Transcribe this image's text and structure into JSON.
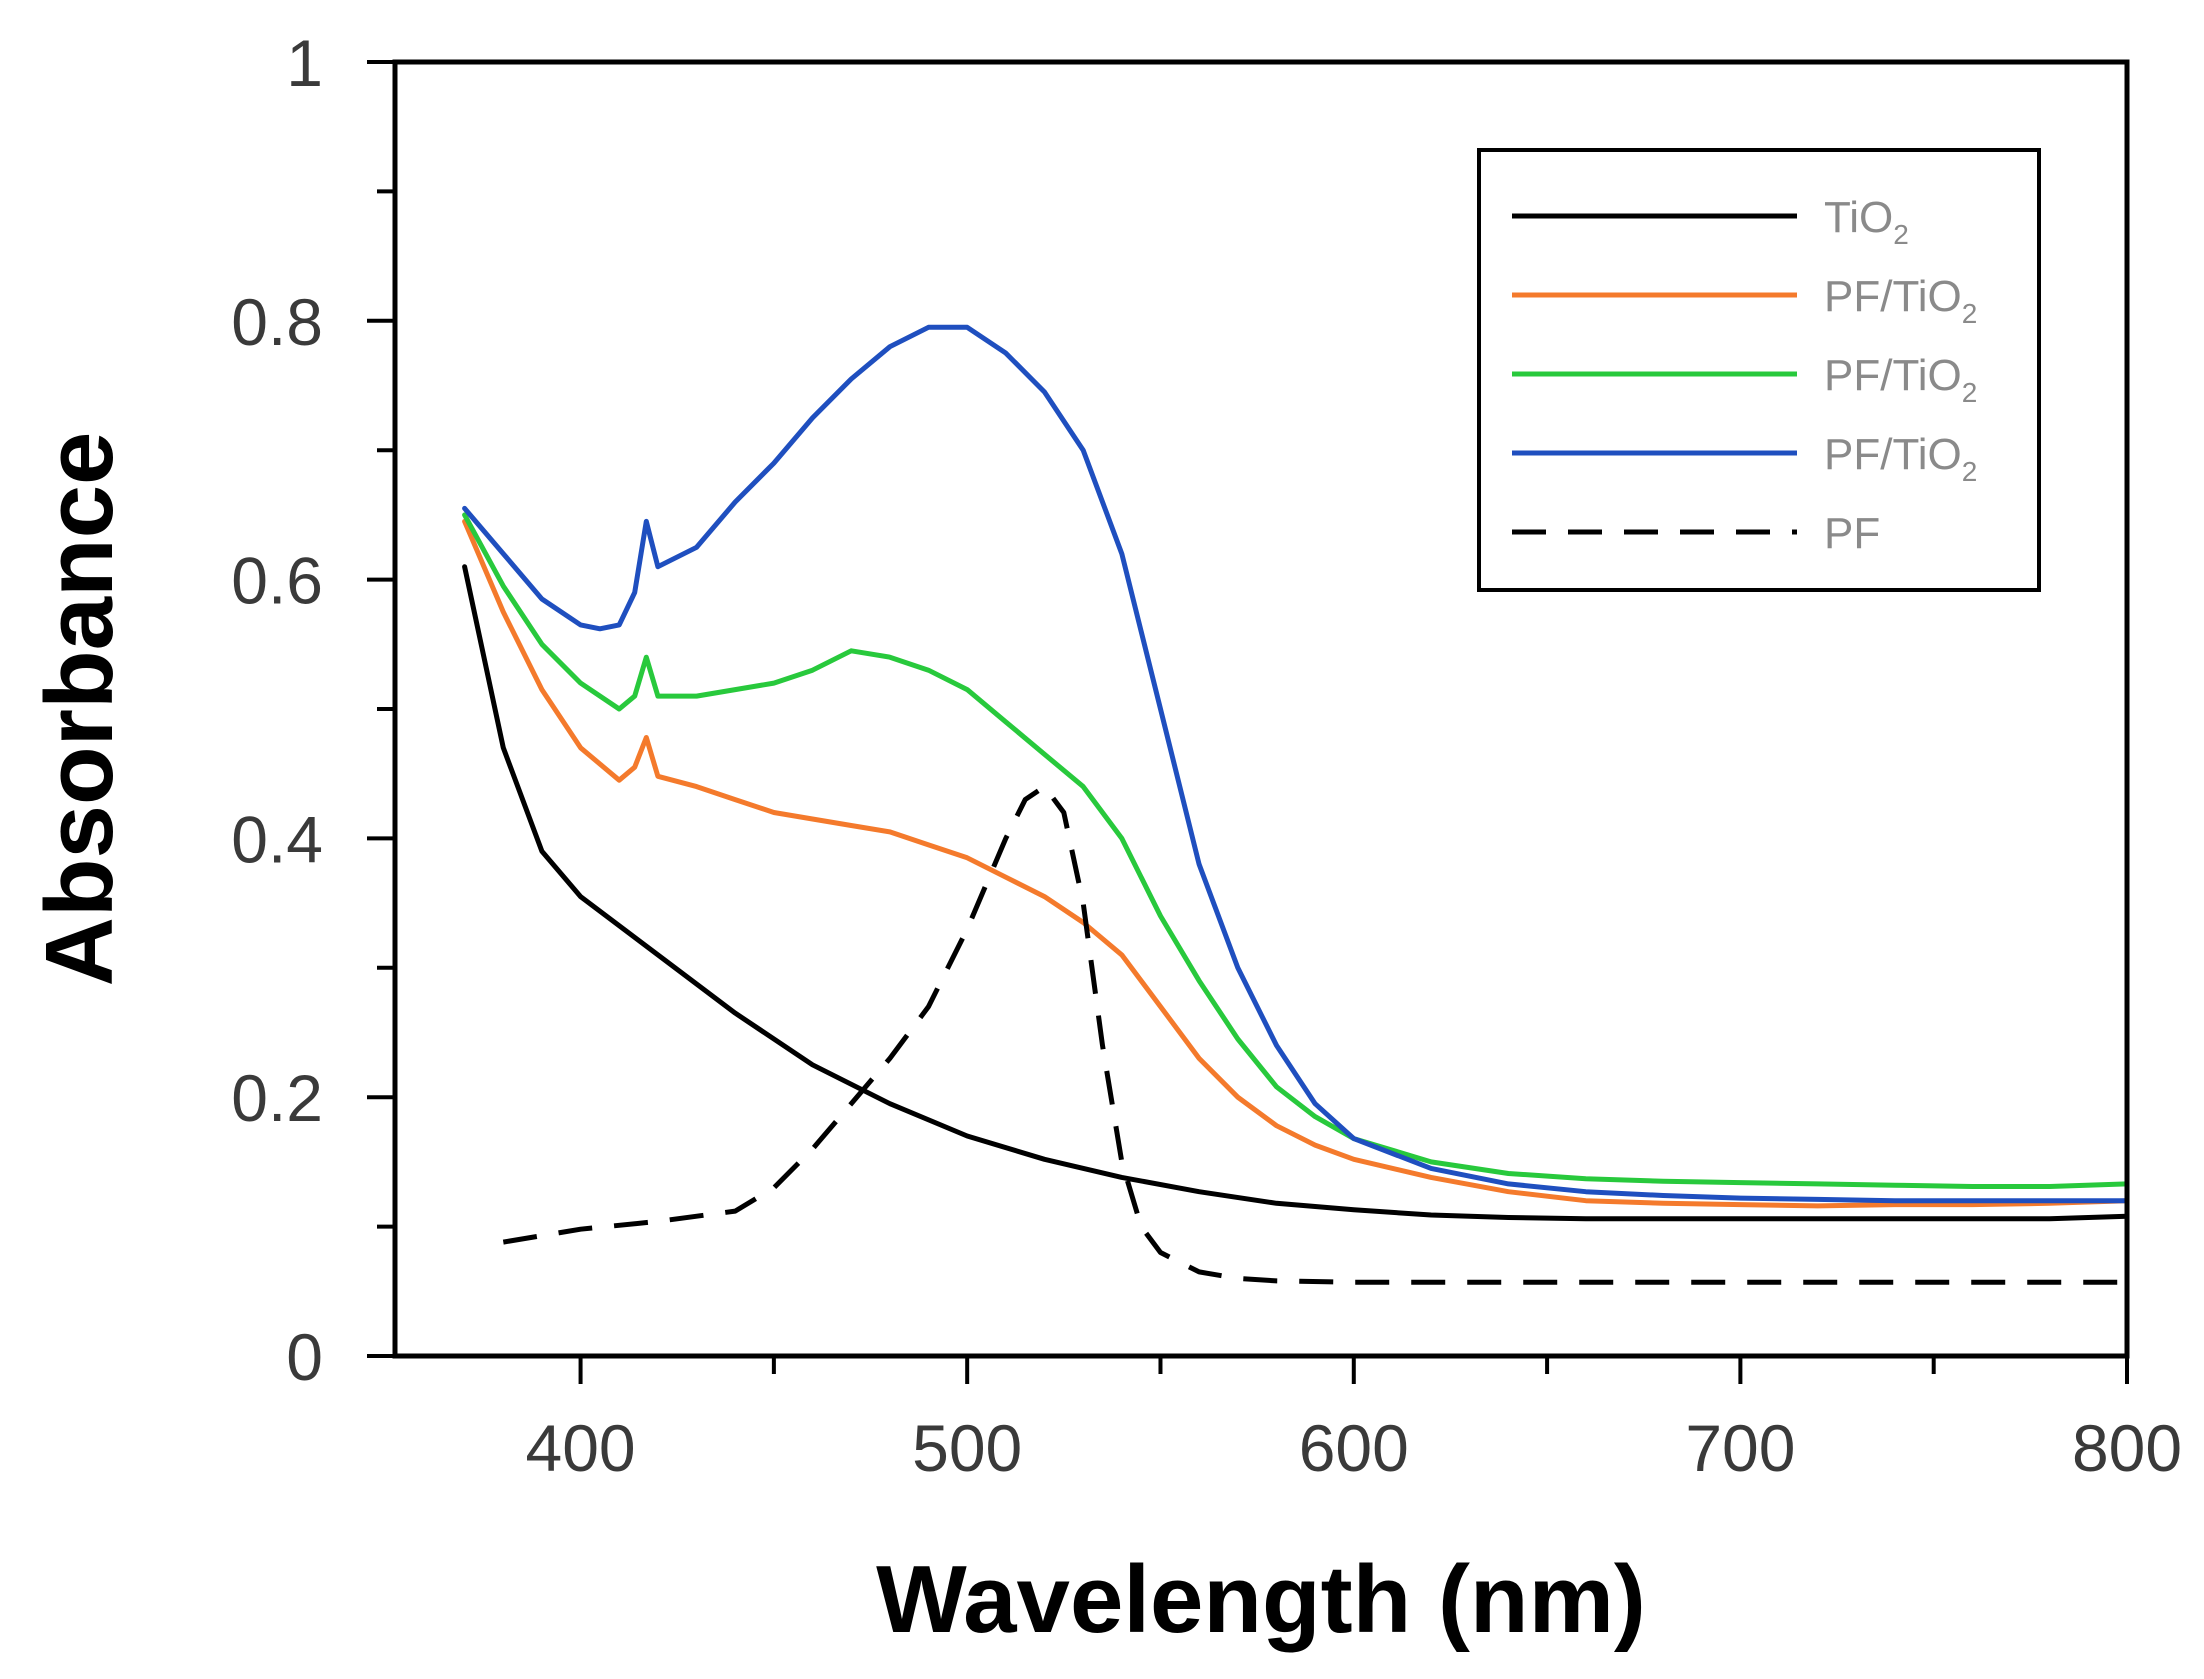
{
  "chart_data": {
    "type": "line",
    "title": "",
    "xlabel": "Wavelength (nm)",
    "ylabel": "Absorbance",
    "xlim": [
      352,
      800
    ],
    "ylim": [
      0,
      1
    ],
    "x_ticks": [
      400,
      500,
      600,
      700,
      800
    ],
    "x_tick_labels": [
      "400",
      "500",
      "600",
      "700",
      "800"
    ],
    "y_ticks": [
      0,
      0.2,
      0.4,
      0.6,
      0.8,
      1
    ],
    "y_tick_labels": [
      "0",
      "0.2",
      "0.4",
      "0.6",
      "0.8",
      "1"
    ],
    "legend_position": "top-right",
    "series": [
      {
        "name": "TiO2",
        "label_main": "TiO",
        "label_sub": "2",
        "color": "#000000",
        "dash": "solid",
        "x": [
          370,
          380,
          390,
          400,
          420,
          440,
          460,
          480,
          500,
          520,
          540,
          560,
          580,
          600,
          620,
          640,
          660,
          680,
          700,
          720,
          740,
          760,
          780,
          800
        ],
        "y": [
          0.61,
          0.47,
          0.39,
          0.355,
          0.31,
          0.265,
          0.225,
          0.195,
          0.17,
          0.152,
          0.138,
          0.127,
          0.118,
          0.113,
          0.109,
          0.107,
          0.106,
          0.106,
          0.106,
          0.106,
          0.106,
          0.106,
          0.106,
          0.108
        ]
      },
      {
        "name": "PF/TiO2",
        "label_main": "PF/TiO",
        "label_sub": "2",
        "color": "#f47a2c",
        "dash": "solid",
        "x": [
          370,
          380,
          390,
          400,
          410,
          414,
          417,
          420,
          430,
          440,
          450,
          460,
          470,
          480,
          490,
          500,
          510,
          520,
          530,
          540,
          550,
          560,
          570,
          580,
          590,
          600,
          620,
          640,
          660,
          680,
          700,
          720,
          740,
          760,
          780,
          800
        ],
        "y": [
          0.645,
          0.575,
          0.515,
          0.47,
          0.445,
          0.455,
          0.478,
          0.448,
          0.44,
          0.43,
          0.42,
          0.415,
          0.41,
          0.405,
          0.395,
          0.385,
          0.37,
          0.355,
          0.335,
          0.31,
          0.27,
          0.23,
          0.2,
          0.178,
          0.163,
          0.152,
          0.138,
          0.127,
          0.12,
          0.118,
          0.117,
          0.116,
          0.117,
          0.117,
          0.118,
          0.12
        ]
      },
      {
        "name": "PF/TiO2",
        "label_main": "PF/TiO",
        "label_sub": "2",
        "color": "#28c93c",
        "dash": "solid",
        "x": [
          370,
          380,
          390,
          400,
          410,
          414,
          417,
          420,
          430,
          440,
          450,
          460,
          470,
          480,
          490,
          500,
          510,
          520,
          530,
          540,
          550,
          560,
          570,
          580,
          590,
          600,
          620,
          640,
          660,
          680,
          700,
          720,
          740,
          760,
          780,
          800
        ],
        "y": [
          0.65,
          0.595,
          0.55,
          0.52,
          0.5,
          0.51,
          0.54,
          0.51,
          0.51,
          0.515,
          0.52,
          0.53,
          0.545,
          0.54,
          0.53,
          0.515,
          0.49,
          0.465,
          0.44,
          0.4,
          0.34,
          0.29,
          0.245,
          0.208,
          0.185,
          0.168,
          0.15,
          0.141,
          0.137,
          0.135,
          0.134,
          0.133,
          0.132,
          0.131,
          0.131,
          0.133
        ]
      },
      {
        "name": "PF/TiO2",
        "label_main": "PF/TiO",
        "label_sub": "2",
        "color": "#1f4fbf",
        "dash": "solid",
        "x": [
          370,
          380,
          390,
          400,
          405,
          410,
          414,
          417,
          420,
          430,
          440,
          450,
          460,
          470,
          480,
          490,
          500,
          510,
          520,
          530,
          540,
          550,
          560,
          570,
          580,
          590,
          600,
          620,
          640,
          660,
          680,
          700,
          720,
          740,
          760,
          780,
          800
        ],
        "y": [
          0.655,
          0.62,
          0.585,
          0.565,
          0.562,
          0.565,
          0.59,
          0.645,
          0.61,
          0.625,
          0.66,
          0.69,
          0.725,
          0.755,
          0.78,
          0.795,
          0.795,
          0.775,
          0.745,
          0.7,
          0.62,
          0.5,
          0.38,
          0.3,
          0.24,
          0.195,
          0.168,
          0.145,
          0.133,
          0.127,
          0.124,
          0.122,
          0.121,
          0.12,
          0.12,
          0.12,
          0.12
        ]
      },
      {
        "name": "PF",
        "label_main": "PF",
        "label_sub": "",
        "color": "#000000",
        "dash": "dashed",
        "x": [
          380,
          400,
          420,
          440,
          450,
          460,
          470,
          480,
          490,
          500,
          510,
          515,
          520,
          525,
          530,
          535,
          540,
          545,
          550,
          560,
          570,
          580,
          600,
          650,
          700,
          750,
          800
        ],
        "y": [
          0.088,
          0.098,
          0.104,
          0.112,
          0.13,
          0.16,
          0.195,
          0.23,
          0.27,
          0.33,
          0.4,
          0.43,
          0.44,
          0.42,
          0.35,
          0.24,
          0.15,
          0.1,
          0.08,
          0.065,
          0.06,
          0.058,
          0.057,
          0.057,
          0.057,
          0.057,
          0.057
        ]
      }
    ]
  }
}
